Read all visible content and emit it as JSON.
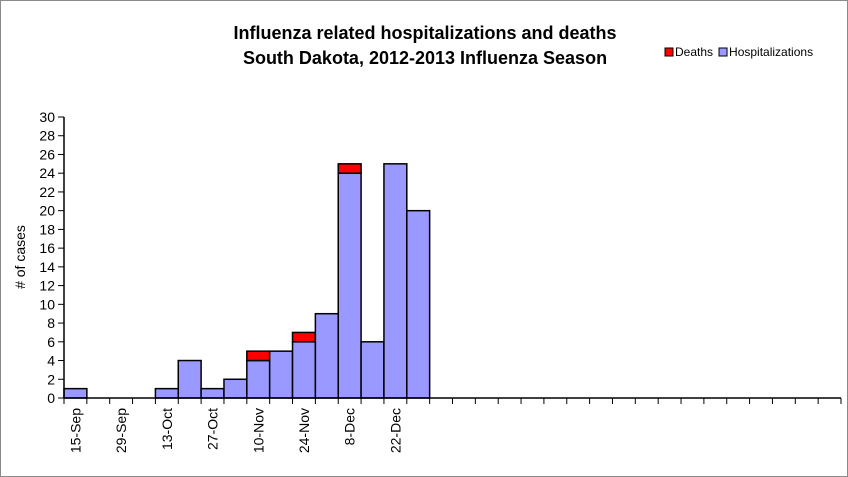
{
  "chart_data": {
    "type": "bar",
    "stacked": true,
    "title": "Influenza related hospitalizations and deaths",
    "subtitle": "South Dakota, 2012-2013 Influenza Season",
    "xlabel": "",
    "ylabel": "# of cases",
    "ylim": [
      0,
      30
    ],
    "y_ticks": [
      0,
      2,
      4,
      6,
      8,
      10,
      12,
      14,
      16,
      18,
      20,
      22,
      24,
      26,
      28,
      30
    ],
    "grid": false,
    "legend_position": "top-right",
    "x_tick_labels": [
      {
        "week": 1,
        "label": "15-Sep"
      },
      {
        "week": 3,
        "label": "29-Sep"
      },
      {
        "week": 5,
        "label": "13-Oct"
      },
      {
        "week": 7,
        "label": "27-Oct"
      },
      {
        "week": 9,
        "label": "10-Nov"
      },
      {
        "week": 11,
        "label": "24-Nov"
      },
      {
        "week": 13,
        "label": "8-Dec"
      },
      {
        "week": 15,
        "label": "22-Dec"
      }
    ],
    "week_count": 34,
    "series": [
      {
        "name": "Hospitalizations",
        "color": "#9999ff",
        "values": [
          1,
          0,
          0,
          0,
          1,
          4,
          1,
          2,
          4,
          5,
          6,
          9,
          24,
          6,
          25,
          20
        ]
      },
      {
        "name": "Deaths",
        "color": "#ff0000",
        "values": [
          0,
          0,
          0,
          0,
          0,
          0,
          0,
          0,
          1,
          0,
          1,
          0,
          1,
          0,
          0,
          0
        ]
      }
    ],
    "legend_order": [
      "Deaths",
      "Hospitalizations"
    ]
  }
}
